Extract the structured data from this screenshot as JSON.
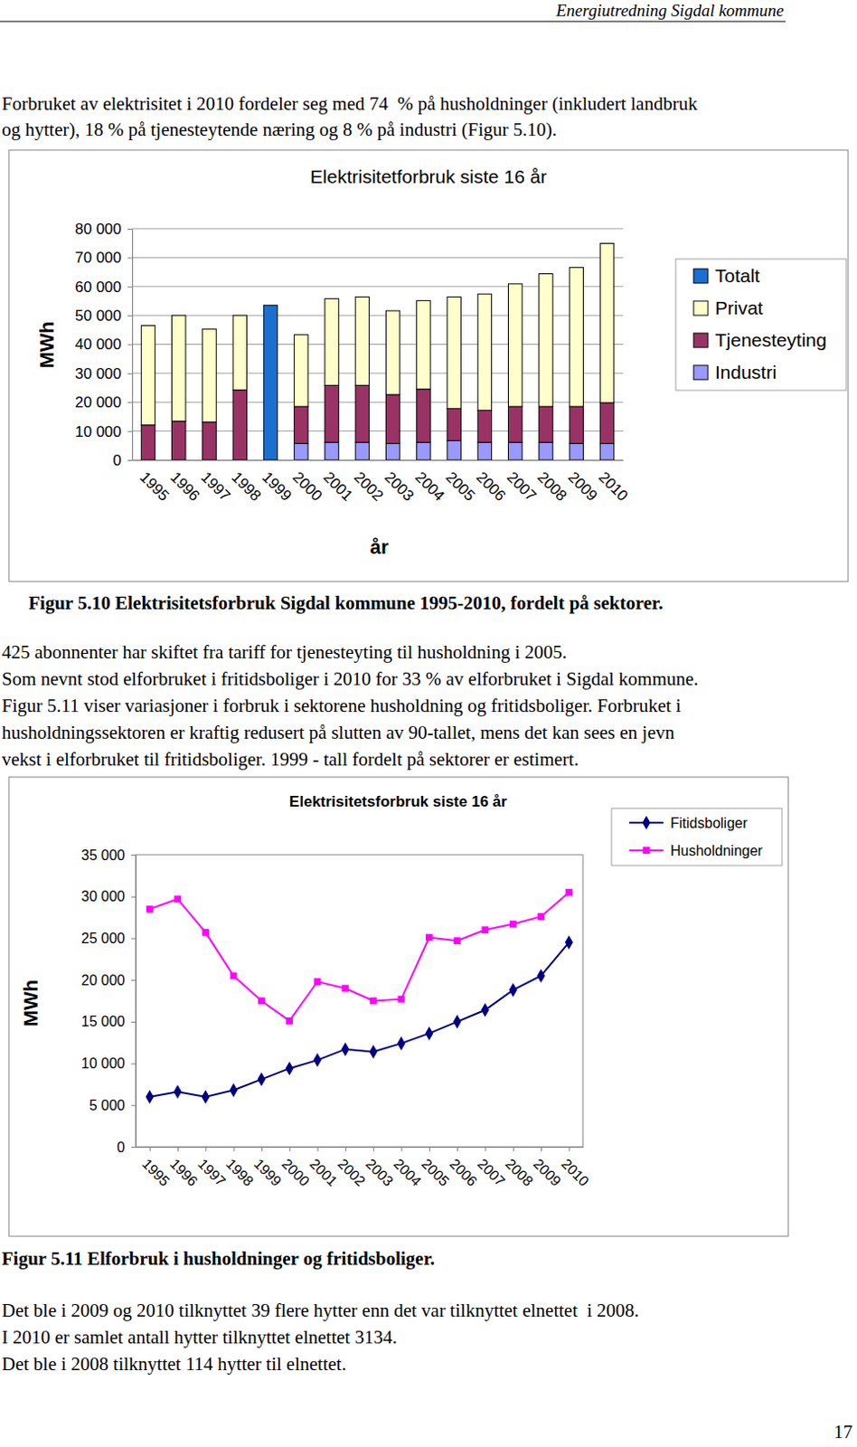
{
  "header": "Energiutredning Sigdal kommune",
  "intro": [
    "Forbruket av elektrisitet i 2010 fordeler seg med 74  % på husholdninger (inkludert landbruk",
    "og hytter), 18 % på tjenesteytende næring og 8 % på industri (Figur 5.10)."
  ],
  "chart_data": [
    {
      "type": "bar",
      "title": "Elektrisitetforbruk siste 16 år",
      "x_label": "år",
      "y_label": "MWh",
      "stacked": true,
      "grid": true,
      "legend": "right",
      "categories": [
        "1995",
        "1996",
        "1997",
        "1998",
        "1999",
        "2000",
        "2001",
        "2002",
        "2003",
        "2004",
        "2005",
        "2006",
        "2007",
        "2008",
        "2009",
        "2010"
      ],
      "series": [
        {
          "name": "Totalt",
          "color": "#1a6fd0",
          "values": [
            null,
            null,
            null,
            null,
            53500,
            null,
            null,
            null,
            null,
            null,
            null,
            null,
            null,
            null,
            null,
            null
          ]
        },
        {
          "name": "Privat",
          "color": "#ffffcc",
          "values": [
            34400,
            36600,
            32200,
            25800,
            null,
            24800,
            30000,
            30600,
            29000,
            30600,
            38600,
            40200,
            42400,
            45900,
            48100,
            55100
          ]
        },
        {
          "name": "Tjenesteyting",
          "color": "#993366",
          "values": [
            12100,
            13400,
            13100,
            24200,
            null,
            12800,
            19700,
            19700,
            16900,
            18400,
            11100,
            11100,
            12400,
            12400,
            12800,
            14100
          ]
        },
        {
          "name": "Industri",
          "color": "#9999ff",
          "values": [
            null,
            null,
            null,
            null,
            null,
            5700,
            6100,
            6100,
            5700,
            6100,
            6700,
            6100,
            6100,
            6100,
            5700,
            5700
          ]
        }
      ],
      "ylim": [
        0,
        80000
      ],
      "yticks": [
        0,
        {
          "value": 10000,
          "label": "10 000"
        },
        {
          "value": 20000,
          "label": "20 000"
        },
        {
          "value": 30000,
          "label": "30 000"
        },
        {
          "value": 40000,
          "label": "40 000"
        },
        {
          "value": 50000,
          "label": "50 000"
        },
        {
          "value": 60000,
          "label": "60 000"
        },
        {
          "value": 70000,
          "label": "70 000"
        },
        {
          "value": 80000,
          "label": "80 000"
        }
      ]
    },
    {
      "type": "line",
      "title": "Elektrisitetsforbruk siste 16 år",
      "y_label": "MWh",
      "grid": false,
      "legend": "right",
      "categories": [
        "1995",
        "1996",
        "1997",
        "1998",
        "1999",
        "2000",
        "2001",
        "2002",
        "2003",
        "2004",
        "2005",
        "2006",
        "2007",
        "2008",
        "2009",
        "2010"
      ],
      "series": [
        {
          "name": "Fitidsboliger",
          "color": "#000080",
          "marker": "diamond",
          "line_style": "solid",
          "values": [
            6000,
            6600,
            6000,
            6800,
            8100,
            9400,
            10400,
            11700,
            11400,
            12400,
            13600,
            15000,
            16400,
            18800,
            20500,
            24500
          ]
        },
        {
          "name": "Husholdninger",
          "color": "#ff00ff",
          "marker": "square",
          "line_style": "solid",
          "values": [
            28500,
            29700,
            25700,
            20500,
            17500,
            15100,
            19800,
            19000,
            17500,
            17700,
            25100,
            24700,
            26000,
            26700,
            27600,
            30500
          ]
        }
      ],
      "ylim": [
        0,
        35000
      ],
      "yticks": [
        0,
        {
          "value": 5000,
          "label": "5 000"
        },
        {
          "value": 10000,
          "label": "10 000"
        },
        {
          "value": 15000,
          "label": "15 000"
        },
        {
          "value": 20000,
          "label": "20 000"
        },
        {
          "value": 25000,
          "label": "25 000"
        },
        {
          "value": 30000,
          "label": "30 000"
        },
        {
          "value": 35000,
          "label": "35 000"
        }
      ]
    }
  ],
  "captions": [
    "Figur 5.10 Elektrisitetsforbruk Sigdal kommune 1995-2010, fordelt på sektorer.",
    "Figur 5.11 Elforbruk i husholdninger og fritidsboliger."
  ],
  "middle": [
    "425 abonnenter har skiftet fra tariff for tjenesteyting til husholdning i 2005.",
    "Som nevnt stod elforbruket i fritidsboliger i 2010 for 33 % av elforbruket i Sigdal kommune.",
    "Figur 5.11 viser variasjoner i forbruk i sektorene husholdning og fritidsboliger. Forbruket i",
    "husholdningssektoren er kraftig redusert på slutten av 90-tallet, mens det kan sees en jevn",
    "vekst i elforbruket til fritidsboliger. 1999 - tall fordelt på sektorer er estimert."
  ],
  "ending": [
    "Det ble i 2009 og 2010 tilknyttet 39 flere hytter enn det var tilknyttet elnettet  i 2008.",
    "I 2010 er samlet antall hytter tilknyttet elnettet 3134.",
    "Det ble i 2008 tilknyttet 114 hytter til elnettet."
  ],
  "page_number": "17"
}
